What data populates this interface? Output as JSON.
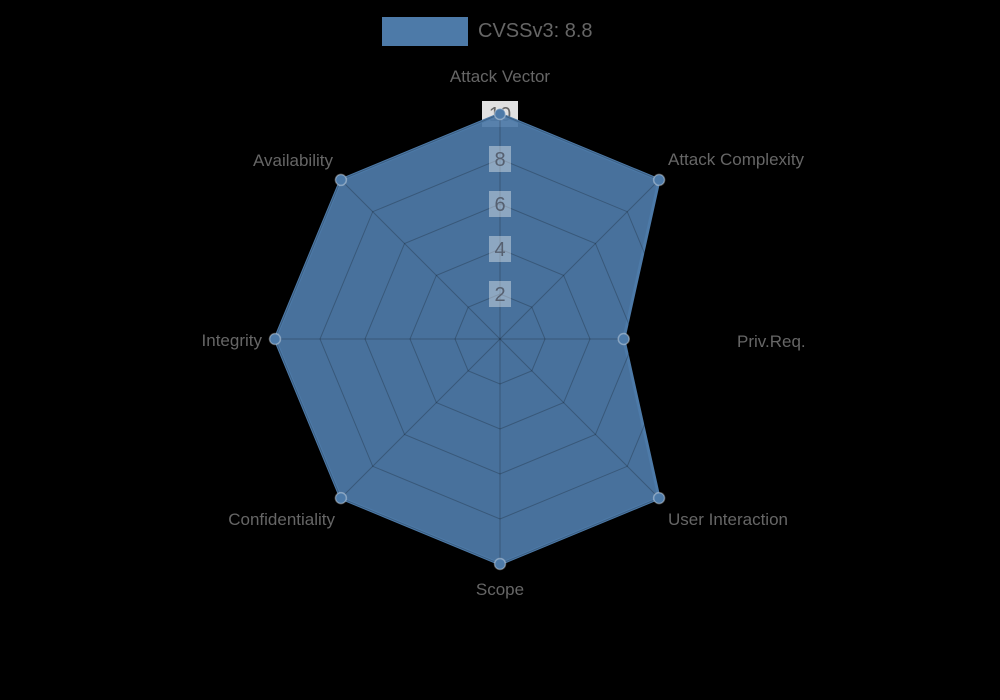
{
  "legend": {
    "label": "CVSSv3: 8.8"
  },
  "colors": {
    "background": "#000000",
    "series": "#4d7aa8",
    "grid": "rgba(0,0,0,0.22)",
    "axis_label_text": "#666666",
    "tick_text": "#566070",
    "tick_text_outer": "#666666",
    "tick_backdrop_outer": "rgba(255,255,255,0.88)",
    "tick_backdrop_inner": "rgba(255,255,255,0.38)",
    "point_border": "rgba(255,255,255,0.35)"
  },
  "chart_data": {
    "type": "radar",
    "title": "",
    "legend_entries": [
      "CVSSv3: 8.8"
    ],
    "legend_position": "top",
    "categories": [
      "Attack Vector",
      "Attack Complexity",
      "Priv.Req.",
      "User Interaction",
      "Scope",
      "Confidentiality",
      "Integrity",
      "Availability"
    ],
    "series": [
      {
        "name": "CVSSv3: 8.8",
        "values": [
          10,
          10,
          5.5,
          10,
          10,
          10,
          10,
          10
        ]
      }
    ],
    "r_ticks": [
      2,
      4,
      6,
      8,
      10
    ],
    "r_min": 0,
    "r_max": 10,
    "grid": true
  }
}
